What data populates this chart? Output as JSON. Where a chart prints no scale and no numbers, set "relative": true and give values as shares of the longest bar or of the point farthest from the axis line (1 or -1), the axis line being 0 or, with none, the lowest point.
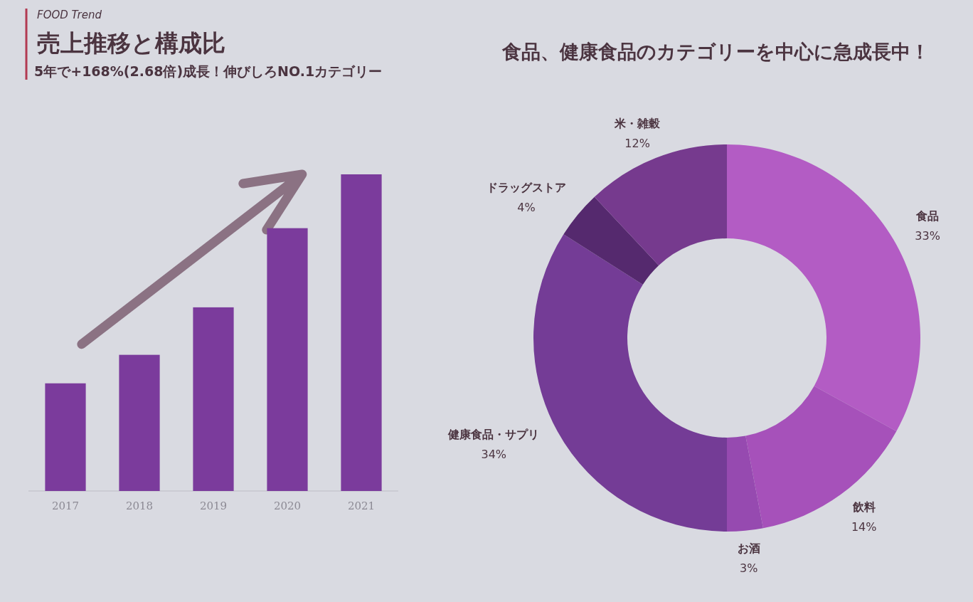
{
  "chart_data": [
    {
      "type": "bar",
      "title": "売上推移と構成比",
      "subtitle": "5年で+168%(2.68倍)成長！伸びしろNO.1カテゴリー",
      "annotations": [
        "FOOD Trend"
      ],
      "categories": [
        "2017",
        "2018",
        "2019",
        "2020",
        "2021"
      ],
      "values": [
        0.34,
        0.43,
        0.58,
        0.83,
        1
      ],
      "color": "#7b3b9c",
      "relative": true
    },
    {
      "type": "donut",
      "title": "食品、健康食品のカテゴリーを中心に急成長中！",
      "categories": [
        "食品",
        "飲料",
        "お酒",
        "健康食品・サプリ",
        "ドラッグストア",
        "米・雑穀"
      ],
      "values": [
        33,
        14,
        3,
        34,
        4,
        12
      ],
      "colors": [
        "#b35cc4",
        "#a651ba",
        "#964ab0",
        "#743c96",
        "#55296e",
        "#763a8e"
      ],
      "value_labels": [
        "33%",
        "14%",
        "3%",
        "34%",
        "4%",
        "12%"
      ]
    }
  ]
}
